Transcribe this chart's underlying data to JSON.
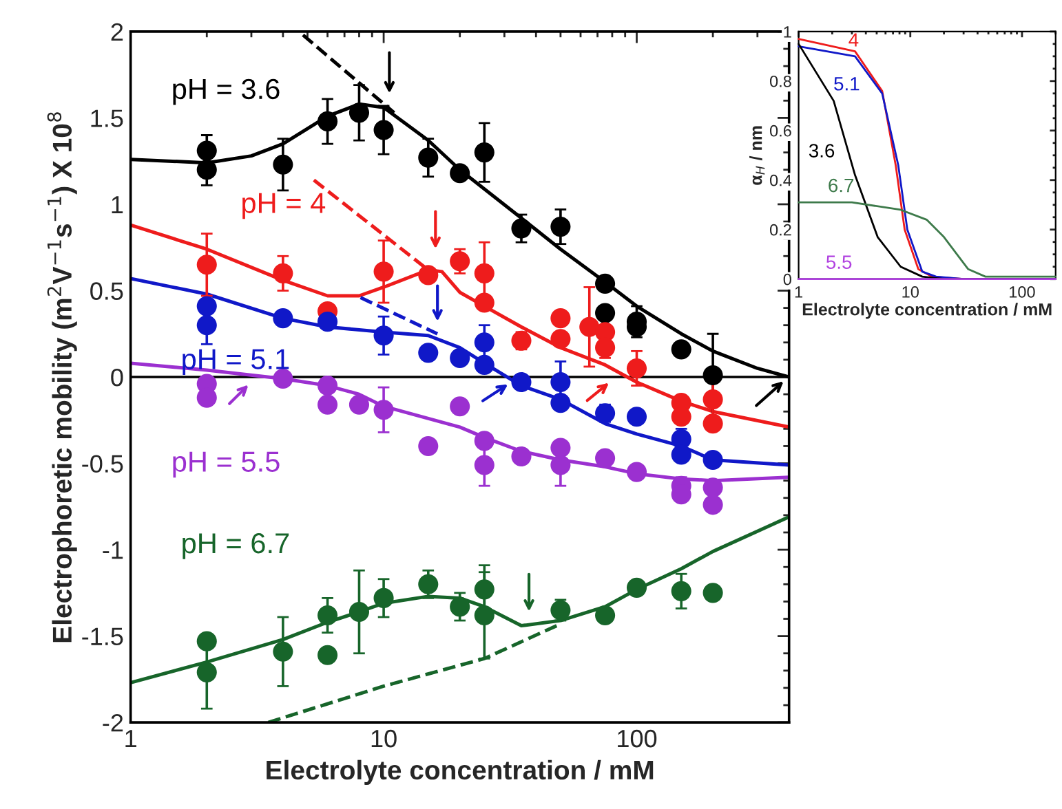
{
  "chart_data": [
    {
      "type": "scatter",
      "xlabel": "Electrolyte concentration / mM",
      "ylabel": "Electrophoretic mobility (m$^{2}$V$^{−1}$s$^{−1}$) X 10$^{8}$",
      "log": "x",
      "xlim": [
        1,
        400
      ],
      "xticks": [
        1,
        10,
        100
      ],
      "ylim": [
        -2,
        2
      ],
      "yticks": [
        -2,
        -1.5,
        -1,
        -0.5,
        0,
        0.5,
        1,
        1.5,
        2
      ],
      "ref_lines": [
        {
          "axis": "y",
          "value": 0,
          "color": "#000000"
        }
      ],
      "series": [
        {
          "type": "scatter",
          "name": "pH = 3.6",
          "marker": "circle",
          "color": "#000000",
          "x": [
            2,
            2,
            4,
            6,
            8,
            10,
            15,
            20,
            25,
            35,
            50,
            75,
            75,
            100,
            100,
            150,
            200
          ],
          "values": [
            1.31,
            1.2,
            1.23,
            1.48,
            1.53,
            1.43,
            1.27,
            1.18,
            1.3,
            0.86,
            0.87,
            0.54,
            0.37,
            0.32,
            0.29,
            0.16,
            0.01
          ],
          "errors": [
            0.09,
            0.09,
            0.15,
            0.13,
            0.16,
            0.14,
            0.11,
            null,
            0.17,
            0.08,
            0.1,
            null,
            null,
            0.09,
            null,
            null,
            0.24
          ]
        },
        {
          "type": "line",
          "color": "#000000",
          "x": [
            1,
            2,
            3,
            4,
            6,
            8,
            10,
            15,
            20,
            35,
            50,
            75,
            100,
            150,
            200,
            300,
            400
          ],
          "values": [
            1.26,
            1.24,
            1.28,
            1.35,
            1.51,
            1.58,
            1.56,
            1.37,
            1.2,
            0.92,
            0.74,
            0.55,
            0.41,
            0.25,
            0.15,
            0.05,
            0.0
          ]
        },
        {
          "type": "line",
          "line_style": "dashed",
          "color": "#000000",
          "x": [
            4.8,
            11
          ],
          "values": [
            1.98,
            1.53
          ]
        },
        {
          "type": "scatter",
          "name": "pH = 4",
          "marker": "circle",
          "color": "#ee1c1c",
          "x": [
            2,
            4,
            6,
            10,
            15,
            20,
            25,
            25,
            35,
            50,
            50,
            65,
            75,
            75,
            100,
            150,
            150,
            200,
            200
          ],
          "values": [
            0.65,
            0.6,
            0.38,
            0.61,
            0.59,
            0.67,
            0.6,
            0.43,
            0.21,
            0.34,
            0.22,
            0.29,
            0.26,
            0.17,
            0.05,
            -0.15,
            -0.23,
            -0.13,
            -0.27
          ],
          "errors": [
            0.18,
            0.1,
            null,
            0.18,
            null,
            0.07,
            0.18,
            null,
            0.05,
            null,
            null,
            0.23,
            null,
            0.06,
            0.1,
            null,
            null,
            0.12,
            null
          ]
        },
        {
          "type": "line",
          "color": "#ee1c1c",
          "x": [
            1,
            2,
            4,
            6,
            8,
            10,
            15,
            17,
            20,
            25,
            35,
            50,
            75,
            100,
            150,
            200,
            400
          ],
          "values": [
            0.88,
            0.74,
            0.56,
            0.47,
            0.47,
            0.52,
            0.62,
            0.61,
            0.49,
            0.41,
            0.29,
            0.17,
            0.07,
            -0.03,
            -0.14,
            -0.2,
            -0.29
          ]
        },
        {
          "type": "line",
          "line_style": "dashed",
          "color": "#ee1c1c",
          "x": [
            5.3,
            15.3
          ],
          "values": [
            1.14,
            0.61
          ]
        },
        {
          "type": "scatter",
          "name": "pH = 5.1",
          "marker": "circle",
          "color": "#1018c8",
          "x": [
            2,
            2,
            4,
            6,
            10,
            15,
            20,
            25,
            25,
            35,
            50,
            50,
            75,
            100,
            150,
            150,
            200
          ],
          "values": [
            0.41,
            0.3,
            0.34,
            0.32,
            0.24,
            0.14,
            0.11,
            0.2,
            0.07,
            -0.03,
            -0.03,
            -0.15,
            -0.21,
            -0.23,
            -0.36,
            -0.45,
            -0.48
          ],
          "errors": [
            null,
            0.11,
            null,
            null,
            0.11,
            null,
            null,
            0.1,
            null,
            null,
            0.12,
            null,
            0.05,
            null,
            0.06,
            null,
            null
          ]
        },
        {
          "type": "line",
          "color": "#1018c8",
          "x": [
            1,
            2,
            4,
            6,
            10,
            15,
            20,
            25,
            35,
            50,
            75,
            100,
            150,
            200,
            400
          ],
          "values": [
            0.57,
            0.48,
            0.34,
            0.29,
            0.26,
            0.24,
            0.17,
            0.08,
            -0.05,
            -0.13,
            -0.27,
            -0.33,
            -0.4,
            -0.48,
            -0.51
          ]
        },
        {
          "type": "line",
          "line_style": "dashed",
          "color": "#1018c8",
          "x": [
            8.1,
            16.3
          ],
          "values": [
            0.46,
            0.25
          ]
        },
        {
          "type": "scatter",
          "name": "pH = 5.5",
          "marker": "circle",
          "color": "#9b30d0",
          "x": [
            2,
            2,
            4,
            6,
            6,
            8,
            10,
            15,
            20,
            25,
            25,
            35,
            50,
            50,
            75,
            100,
            150,
            150,
            200,
            200
          ],
          "values": [
            -0.04,
            -0.12,
            -0.01,
            -0.05,
            -0.16,
            -0.16,
            -0.19,
            -0.4,
            -0.17,
            -0.37,
            -0.51,
            -0.46,
            -0.41,
            -0.51,
            -0.47,
            -0.55,
            -0.63,
            -0.68,
            -0.64,
            -0.74
          ],
          "errors": [
            null,
            null,
            null,
            null,
            null,
            null,
            0.13,
            null,
            null,
            null,
            0.12,
            null,
            null,
            0.12,
            null,
            null,
            0.05,
            null,
            null,
            null
          ]
        },
        {
          "type": "line",
          "color": "#9b30d0",
          "x": [
            1,
            2,
            4,
            6,
            8,
            10,
            20,
            25,
            35,
            50,
            75,
            100,
            150,
            200,
            400
          ],
          "values": [
            0.08,
            0.04,
            -0.01,
            -0.05,
            -0.1,
            -0.17,
            -0.29,
            -0.35,
            -0.43,
            -0.48,
            -0.52,
            -0.56,
            -0.59,
            -0.6,
            -0.58
          ]
        },
        {
          "type": "scatter",
          "name": "pH = 6.7",
          "marker": "circle",
          "color": "#17652a",
          "x": [
            2,
            2,
            4,
            6,
            6,
            8,
            10,
            15,
            20,
            25,
            25,
            50,
            75,
            100,
            150,
            200
          ],
          "values": [
            -1.53,
            -1.71,
            -1.59,
            -1.38,
            -1.61,
            -1.36,
            -1.28,
            -1.2,
            -1.33,
            -1.23,
            -1.38,
            -1.35,
            -1.38,
            -1.22,
            -1.24,
            -1.25
          ],
          "errors": [
            null,
            0.21,
            0.2,
            0.1,
            null,
            0.24,
            0.11,
            0.08,
            0.08,
            0.14,
            0.25,
            0.06,
            null,
            null,
            0.1,
            null
          ]
        },
        {
          "type": "line",
          "color": "#17652a",
          "x": [
            1,
            2,
            4,
            6,
            8,
            10,
            15,
            20,
            25,
            35,
            50,
            75,
            100,
            150,
            200,
            400
          ],
          "values": [
            -1.77,
            -1.65,
            -1.52,
            -1.42,
            -1.36,
            -1.31,
            -1.27,
            -1.28,
            -1.33,
            -1.44,
            -1.41,
            -1.33,
            -1.23,
            -1.11,
            -1.01,
            -0.81
          ]
        },
        {
          "type": "line",
          "line_style": "dashed",
          "color": "#17652a",
          "x": [
            3.5,
            10,
            25,
            50
          ],
          "values": [
            -2.0,
            -1.79,
            -1.63,
            -1.43
          ]
        }
      ]
    },
    {
      "type": "line",
      "xlabel": "Electrolyte concentration / mM",
      "ylabel": "α$_{H}$ / nm",
      "log": "x",
      "xlim": [
        1,
        200
      ],
      "xticks": [
        1,
        10,
        100
      ],
      "ylim": [
        0,
        1
      ],
      "yticks": [
        0,
        0.2,
        0.4,
        0.6,
        0.8,
        1
      ],
      "series": [
        {
          "name": "4",
          "color": "#ee1c1c",
          "x": [
            1,
            3.2,
            5.6,
            7.4,
            8.9,
            11.8,
            15.6,
            30,
            200
          ],
          "values": [
            0.97,
            0.92,
            0.76,
            0.46,
            0.2,
            0.04,
            0.01,
            0.0,
            0.0
          ]
        },
        {
          "name": "5.1",
          "color": "#1018c8",
          "x": [
            1,
            3.2,
            5.6,
            7.8,
            9.4,
            12.8,
            17,
            30,
            200
          ],
          "values": [
            0.94,
            0.9,
            0.75,
            0.46,
            0.2,
            0.03,
            0.01,
            0.0,
            0.0
          ]
        },
        {
          "name": "3.6",
          "color": "#000000",
          "x": [
            1,
            2.06,
            3.2,
            5.1,
            8.2,
            12.8,
            20,
            200
          ],
          "values": [
            0.95,
            0.72,
            0.42,
            0.17,
            0.05,
            0.01,
            0.0,
            0.0
          ]
        },
        {
          "name": "6.7",
          "color": "#3d7a4a",
          "x": [
            1,
            3,
            8.2,
            14,
            20,
            33,
            47,
            200
          ],
          "values": [
            0.31,
            0.31,
            0.28,
            0.24,
            0.17,
            0.04,
            0.01,
            0.01
          ]
        },
        {
          "name": "5.5",
          "color": "#b040e0",
          "x": [
            1,
            200
          ],
          "values": [
            0.0,
            0.0
          ]
        }
      ]
    }
  ]
}
